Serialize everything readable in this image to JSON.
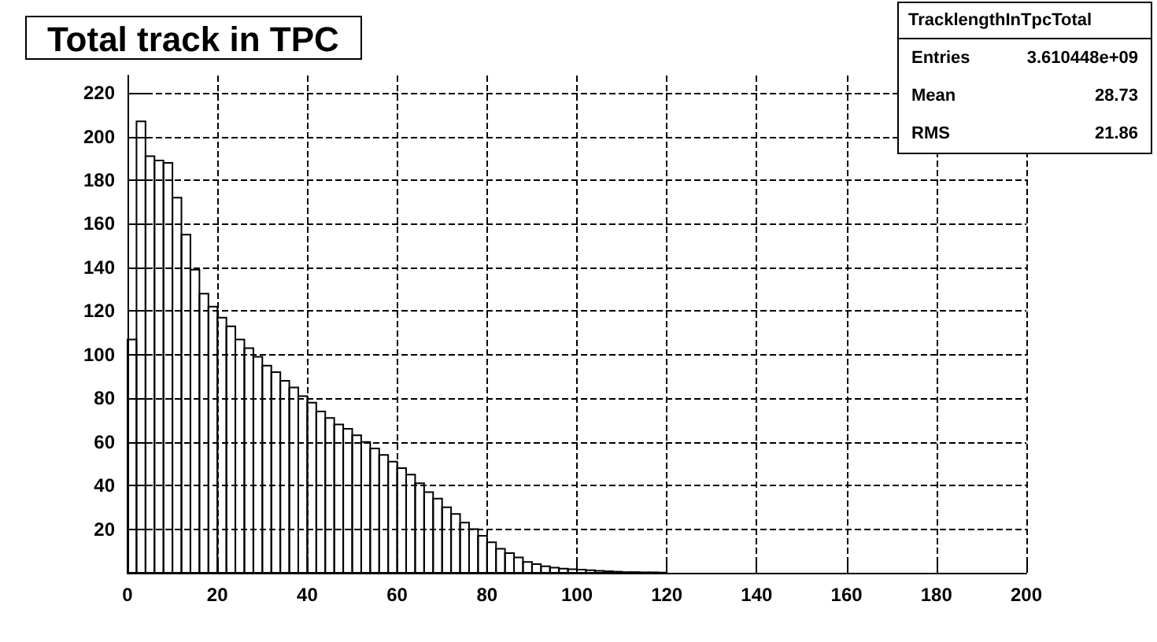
{
  "chart_data": {
    "type": "histogram",
    "title": "Total track in TPC",
    "bins": [
      0,
      2,
      4,
      6,
      8,
      10,
      12,
      14,
      16,
      18,
      20,
      22,
      24,
      26,
      28,
      30,
      32,
      34,
      36,
      38,
      40,
      42,
      44,
      46,
      48,
      50,
      52,
      54,
      56,
      58,
      60,
      62,
      64,
      66,
      68,
      70,
      72,
      74,
      76,
      78,
      80,
      82,
      84,
      86,
      88,
      90,
      92,
      94,
      96,
      98,
      100,
      102,
      104,
      106,
      108,
      110,
      112,
      114,
      116,
      118,
      120
    ],
    "values": [
      107,
      207,
      191,
      189,
      188,
      172,
      155,
      139,
      128,
      122,
      117,
      113,
      107,
      103,
      99,
      95,
      92,
      88,
      85,
      81,
      78,
      74,
      71,
      68,
      66,
      63,
      60,
      57,
      54,
      51,
      48,
      45,
      41,
      37,
      34,
      30,
      27,
      23,
      20,
      17,
      14,
      11,
      9,
      7,
      5,
      4,
      3,
      2.3,
      1.9,
      1.6,
      1.4,
      1.2,
      0.9,
      0.7,
      0.5,
      0.3,
      0.3,
      0.2,
      0.2,
      0.1
    ],
    "color": "#000000",
    "xlim": [
      0,
      200
    ],
    "xticks": [
      0,
      20,
      40,
      60,
      80,
      100,
      120,
      140,
      160,
      180,
      200
    ],
    "ylim": [
      0,
      228
    ],
    "yticks": [
      20,
      40,
      60,
      80,
      100,
      120,
      140,
      160,
      180,
      200,
      220
    ],
    "grid": true,
    "line_style": "dashed",
    "annotations": [
      "TracklengthInTpcTotal",
      "Entries",
      "3.610448e+09",
      "Mean",
      "28.73",
      "RMS",
      "21.86"
    ]
  }
}
